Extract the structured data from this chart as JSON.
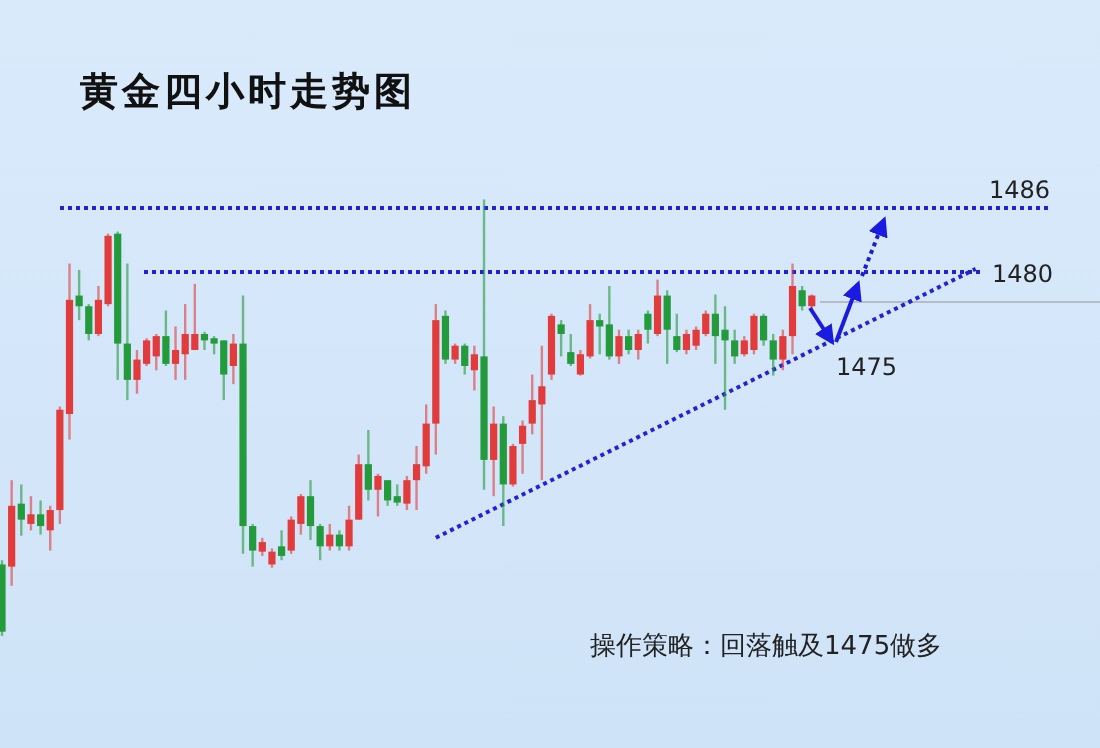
{
  "chart_data": {
    "type": "candlestick",
    "title": "黄金四小时走势图",
    "annotations": [
      "操作策略：回落触及1475做多",
      {
        "text": "1475",
        "y": 1475
      }
    ],
    "categories": [
      null,
      null,
      null,
      null,
      null,
      null,
      null,
      null,
      null,
      null,
      null,
      null,
      null,
      null,
      null,
      null,
      null,
      null,
      null,
      null,
      null,
      null,
      null,
      null,
      null,
      null,
      null,
      null,
      null,
      null,
      null,
      null,
      null,
      null,
      null,
      null,
      null,
      null,
      null,
      null,
      null,
      null,
      null,
      null,
      null,
      null,
      null,
      null,
      null,
      null,
      null,
      null,
      null,
      null,
      null,
      null,
      null,
      null,
      null,
      null,
      null,
      null,
      null,
      null,
      null,
      null,
      null,
      null,
      null,
      null,
      null,
      null,
      null,
      null,
      null,
      null,
      null,
      null,
      null,
      null,
      null,
      null,
      null,
      null,
      null,
      null,
      null,
      null,
      null,
      null,
      null,
      null,
      null,
      null,
      null,
      null,
      null,
      null,
      null,
      null,
      null,
      null
    ],
    "ohlc": [
      [
        1452.6,
        1453.0,
        1445.9,
        1446.3
      ],
      [
        1452.4,
        1460.5,
        1450.6,
        1458.1
      ],
      [
        1458.3,
        1460.1,
        1455.3,
        1456.8
      ],
      [
        1456.4,
        1459.0,
        1455.8,
        1457.3
      ],
      [
        1457.3,
        1458.6,
        1455.4,
        1456.2
      ],
      [
        1455.8,
        1458.1,
        1453.9,
        1457.7
      ],
      [
        1457.7,
        1467.4,
        1456.4,
        1467.1
      ],
      [
        1466.7,
        1480.8,
        1464.3,
        1477.4
      ],
      [
        1477.8,
        1480.2,
        1475.5,
        1476.8
      ],
      [
        1476.8,
        1477.0,
        1473.6,
        1474.2
      ],
      [
        1474.2,
        1478.7,
        1474.0,
        1477.4
      ],
      [
        1477.0,
        1483.6,
        1476.8,
        1483.4
      ],
      [
        1483.6,
        1483.8,
        1469.9,
        1473.3
      ],
      [
        1473.3,
        1480.8,
        1468.0,
        1469.9
      ],
      [
        1469.9,
        1472.7,
        1468.6,
        1471.8
      ],
      [
        1471.4,
        1473.8,
        1471.2,
        1473.6
      ],
      [
        1472.1,
        1474.2,
        1470.8,
        1474.0
      ],
      [
        1474.0,
        1476.4,
        1471.2,
        1471.4
      ],
      [
        1471.4,
        1474.9,
        1469.9,
        1472.7
      ],
      [
        1472.3,
        1477.0,
        1469.9,
        1474.2
      ],
      [
        1472.7,
        1478.9,
        1472.7,
        1474.2
      ],
      [
        1474.2,
        1474.4,
        1472.7,
        1473.6
      ],
      [
        1473.8,
        1474.0,
        1472.3,
        1473.3
      ],
      [
        1473.6,
        1473.6,
        1468.0,
        1470.4
      ],
      [
        1471.2,
        1474.2,
        1469.5,
        1473.3
      ],
      [
        1473.3,
        1477.8,
        1453.6,
        1456.2
      ],
      [
        1456.2,
        1456.4,
        1452.4,
        1453.9
      ],
      [
        1453.8,
        1455.1,
        1453.4,
        1454.7
      ],
      [
        1452.6,
        1454.1,
        1452.3,
        1453.8
      ],
      [
        1454.3,
        1455.8,
        1453.0,
        1453.4
      ],
      [
        1453.9,
        1457.1,
        1453.6,
        1456.8
      ],
      [
        1456.4,
        1459.2,
        1455.4,
        1459.0
      ],
      [
        1459.0,
        1460.5,
        1454.9,
        1456.2
      ],
      [
        1456.2,
        1456.4,
        1453.0,
        1454.3
      ],
      [
        1454.3,
        1456.4,
        1453.9,
        1455.4
      ],
      [
        1455.4,
        1455.8,
        1453.9,
        1454.3
      ],
      [
        1454.3,
        1458.1,
        1453.9,
        1456.8
      ],
      [
        1456.8,
        1462.9,
        1456.8,
        1462.0
      ],
      [
        1462.0,
        1465.2,
        1458.6,
        1459.6
      ],
      [
        1459.6,
        1461.1,
        1457.1,
        1460.9
      ],
      [
        1460.5,
        1460.5,
        1458.1,
        1458.6
      ],
      [
        1459.0,
        1460.1,
        1458.1,
        1458.4
      ],
      [
        1458.3,
        1460.9,
        1457.7,
        1460.5
      ],
      [
        1460.5,
        1463.7,
        1457.7,
        1462.0
      ],
      [
        1461.8,
        1467.6,
        1461.1,
        1465.8
      ],
      [
        1465.8,
        1477.0,
        1462.9,
        1475.5
      ],
      [
        1475.9,
        1476.4,
        1471.4,
        1471.8
      ],
      [
        1471.8,
        1473.3,
        1471.4,
        1473.1
      ],
      [
        1473.1,
        1473.3,
        1470.4,
        1471.2
      ],
      [
        1470.8,
        1473.1,
        1468.9,
        1472.3
      ],
      [
        1472.1,
        1486.8,
        1459.6,
        1462.4
      ],
      [
        1462.4,
        1467.4,
        1459.0,
        1465.8
      ],
      [
        1465.8,
        1466.5,
        1456.2,
        1460.1
      ],
      [
        1460.1,
        1463.9,
        1459.9,
        1463.7
      ],
      [
        1463.9,
        1466.1,
        1461.1,
        1465.6
      ],
      [
        1465.8,
        1470.4,
        1464.8,
        1468.0
      ],
      [
        1467.6,
        1473.1,
        1460.5,
        1469.3
      ],
      [
        1470.4,
        1476.1,
        1469.9,
        1475.9
      ],
      [
        1475.1,
        1475.5,
        1472.1,
        1474.2
      ],
      [
        1472.5,
        1474.2,
        1471.2,
        1471.4
      ],
      [
        1470.4,
        1472.7,
        1470.3,
        1472.3
      ],
      [
        1472.1,
        1477.0,
        1471.9,
        1475.5
      ],
      [
        1475.5,
        1476.1,
        1472.3,
        1474.9
      ],
      [
        1475.1,
        1478.7,
        1471.8,
        1472.1
      ],
      [
        1472.1,
        1474.6,
        1471.4,
        1474.0
      ],
      [
        1474.0,
        1474.6,
        1472.3,
        1472.7
      ],
      [
        1472.7,
        1474.6,
        1471.8,
        1474.2
      ],
      [
        1476.1,
        1476.4,
        1473.3,
        1474.6
      ],
      [
        1474.2,
        1479.3,
        1474.0,
        1477.8
      ],
      [
        1477.8,
        1478.3,
        1471.4,
        1474.6
      ],
      [
        1474.0,
        1476.1,
        1472.5,
        1472.7
      ],
      [
        1472.7,
        1474.6,
        1472.3,
        1474.2
      ],
      [
        1473.1,
        1474.9,
        1472.7,
        1474.6
      ],
      [
        1474.2,
        1476.4,
        1474.0,
        1476.1
      ],
      [
        1476.1,
        1477.9,
        1471.4,
        1474.0
      ],
      [
        1474.6,
        1476.8,
        1467.1,
        1473.6
      ],
      [
        1473.6,
        1474.6,
        1471.4,
        1472.1
      ],
      [
        1472.3,
        1474.0,
        1472.1,
        1473.6
      ],
      [
        1472.7,
        1476.1,
        1472.3,
        1475.9
      ],
      [
        1475.9,
        1476.1,
        1473.1,
        1473.6
      ],
      [
        1473.6,
        1474.2,
        1470.3,
        1471.8
      ],
      [
        1471.8,
        1474.6,
        1470.8,
        1474.0
      ],
      [
        1474.0,
        1480.8,
        1472.3,
        1478.7
      ],
      [
        1478.3,
        1478.7,
        1476.4,
        1476.8
      ],
      [
        1476.8,
        1477.9,
        1476.4,
        1477.8
      ],
      null,
      null,
      null,
      null,
      null,
      null,
      null,
      null,
      null,
      null,
      null,
      null,
      null,
      null,
      null,
      null,
      null
    ],
    "colors": [
      "#239a3b",
      "#e23b3b",
      "#239a3b",
      "#e23b3b",
      "#239a3b",
      "#e23b3b",
      "#e23b3b",
      "#e23b3b",
      "#239a3b",
      "#239a3b",
      "#e23b3b",
      "#e23b3b",
      "#239a3b",
      "#239a3b",
      "#e23b3b",
      "#e23b3b",
      "#e23b3b",
      "#239a3b",
      "#e23b3b",
      "#e23b3b",
      "#e23b3b",
      "#239a3b",
      "#239a3b",
      "#239a3b",
      "#e23b3b",
      "#239a3b",
      "#239a3b",
      "#e23b3b",
      "#e23b3b",
      "#239a3b",
      "#e23b3b",
      "#e23b3b",
      "#239a3b",
      "#239a3b",
      "#e23b3b",
      "#239a3b",
      "#e23b3b",
      "#e23b3b",
      "#239a3b",
      "#e23b3b",
      "#239a3b",
      "#239a3b",
      "#e23b3b",
      "#e23b3b",
      "#e23b3b",
      "#e23b3b",
      "#239a3b",
      "#e23b3b",
      "#239a3b",
      "#e23b3b",
      "#239a3b",
      "#e23b3b",
      "#239a3b",
      "#e23b3b",
      "#e23b3b",
      "#e23b3b",
      "#e23b3b",
      "#e23b3b",
      "#239a3b",
      "#239a3b",
      "#e23b3b",
      "#e23b3b",
      "#239a3b",
      "#239a3b",
      "#e23b3b",
      "#239a3b",
      "#e23b3b",
      "#239a3b",
      "#e23b3b",
      "#239a3b",
      "#239a3b",
      "#e23b3b",
      "#e23b3b",
      "#e23b3b",
      "#239a3b",
      "#239a3b",
      "#239a3b",
      "#e23b3b",
      "#e23b3b",
      "#239a3b",
      "#239a3b",
      "#e23b3b",
      "#e23b3b",
      "#239a3b",
      "#e23b3b",
      null,
      null,
      null,
      null,
      null,
      null,
      null,
      null,
      null,
      null,
      null,
      null,
      null,
      null,
      null,
      null,
      null
    ],
    "series": [
      {
        "type": "line",
        "color": "#2222dd",
        "line_style": "dotted",
        "values": [
          null,
          null,
          null,
          null,
          null,
          null,
          null,
          null,
          null,
          null,
          null,
          null,
          null,
          null,
          null,
          null,
          null,
          null,
          null,
          null,
          null,
          null,
          null,
          null,
          null,
          null,
          null,
          null,
          null,
          null,
          null,
          null,
          null,
          null,
          null,
          null,
          null,
          null,
          null,
          null,
          null,
          null,
          null,
          null,
          null,
          1455.1,
          null,
          null,
          null,
          null,
          null,
          null,
          null,
          null,
          null,
          null,
          null,
          null,
          null,
          null,
          null,
          null,
          null,
          null,
          null,
          null,
          null,
          null,
          null,
          null,
          null,
          null,
          null,
          null,
          null,
          null,
          null,
          null,
          null,
          null,
          null,
          null,
          null,
          null,
          null,
          null,
          null,
          null,
          null,
          null,
          null,
          null,
          null,
          null,
          null,
          null,
          null,
          null,
          null,
          null,
          null,
          1480.3
        ]
      }
    ],
    "ref_lines": [
      {
        "axis": "y",
        "value": 1486,
        "label": "1486",
        "color": "#2222dd",
        "line_style": "dotted"
      },
      {
        "axis": "y",
        "value": 1480,
        "label": "1480",
        "color": "#2222dd",
        "line_style": "dotted"
      },
      {
        "axis": "y",
        "value": 1477.2,
        "color": "#b4bcc6",
        "line_style": "solid"
      }
    ],
    "ylim": [
      1435.4,
      1505.5
    ],
    "tick_labels": false
  }
}
